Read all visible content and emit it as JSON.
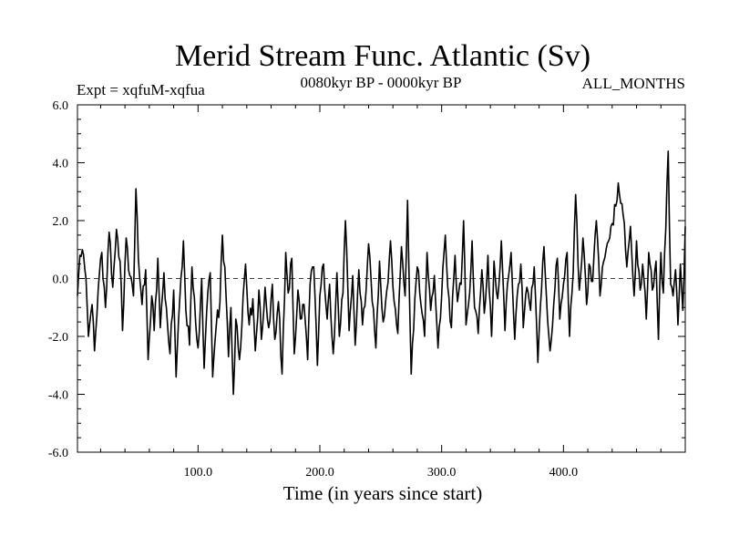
{
  "chart_data": {
    "type": "line",
    "title": "Merid Stream Func. Atlantic (Sv)",
    "left_label": "Expt = xqfuM-xqfua",
    "center_label": "0080kyr BP - 0000kyr BP",
    "right_label": "ALL_MONTHS",
    "xlabel": "Time (in years since start)",
    "ylabel": "",
    "xlim": [
      1,
      500
    ],
    "ylim": [
      -6.0,
      6.0
    ],
    "xticks": [
      100.0,
      200.0,
      300.0,
      400.0
    ],
    "xtick_labels": [
      "100.0",
      "200.0",
      "300.0",
      "400.0"
    ],
    "yticks": [
      -6.0,
      -4.0,
      -2.0,
      0.0,
      2.0,
      4.0,
      6.0
    ],
    "ytick_labels": [
      "-6.0",
      "-4.0",
      "-2.0",
      "0.0",
      "2.0",
      "4.0",
      "6.0"
    ],
    "reference_line": 0.0,
    "series": [
      {
        "name": "xqfuM-xqfua",
        "color": "#000000",
        "anchors": [
          [
            1,
            -0.6
          ],
          [
            3,
            0.8
          ],
          [
            5,
            1.0
          ],
          [
            8,
            0.0
          ],
          [
            10,
            -2.0
          ],
          [
            13,
            -0.9
          ],
          [
            15,
            -2.5
          ],
          [
            18,
            -0.4
          ],
          [
            21,
            0.9
          ],
          [
            24,
            -1.0
          ],
          [
            27,
            1.6
          ],
          [
            30,
            -0.3
          ],
          [
            33,
            1.7
          ],
          [
            36,
            0.6
          ],
          [
            38,
            -1.8
          ],
          [
            41,
            1.4
          ],
          [
            44,
            0.1
          ],
          [
            47,
            -0.6
          ],
          [
            49,
            3.1
          ],
          [
            51,
            0.7
          ],
          [
            54,
            -0.9
          ],
          [
            57,
            0.3
          ],
          [
            59,
            -2.8
          ],
          [
            62,
            -0.6
          ],
          [
            64,
            -1.8
          ],
          [
            67,
            0.7
          ],
          [
            69,
            -1.7
          ],
          [
            72,
            0.2
          ],
          [
            74,
            -1.0
          ],
          [
            77,
            -2.6
          ],
          [
            80,
            -0.4
          ],
          [
            82,
            -3.4
          ],
          [
            85,
            -0.7
          ],
          [
            88,
            1.3
          ],
          [
            90,
            -1.1
          ],
          [
            93,
            -2.3
          ],
          [
            95,
            0.4
          ],
          [
            98,
            -1.5
          ],
          [
            100,
            -2.4
          ],
          [
            103,
            0.0
          ],
          [
            105,
            -3.1
          ],
          [
            108,
            -0.5
          ],
          [
            110,
            0.2
          ],
          [
            112,
            -3.4
          ],
          [
            115,
            -1.6
          ],
          [
            118,
            -0.8
          ],
          [
            120,
            1.5
          ],
          [
            123,
            -0.6
          ],
          [
            125,
            -2.7
          ],
          [
            127,
            -1.0
          ],
          [
            129,
            -4.0
          ],
          [
            131,
            -1.4
          ],
          [
            134,
            -2.8
          ],
          [
            137,
            -0.6
          ],
          [
            139,
            0.5
          ],
          [
            142,
            -1.6
          ],
          [
            145,
            -0.7
          ],
          [
            147,
            -2.5
          ],
          [
            150,
            -0.4
          ],
          [
            152,
            -2.1
          ],
          [
            155,
            -0.3
          ],
          [
            158,
            -1.7
          ],
          [
            161,
            -0.2
          ],
          [
            163,
            -2.1
          ],
          [
            166,
            -0.8
          ],
          [
            169,
            -3.3
          ],
          [
            172,
            0.9
          ],
          [
            174,
            -0.5
          ],
          [
            177,
            0.7
          ],
          [
            179,
            -2.6
          ],
          [
            182,
            -0.4
          ],
          [
            184,
            -1.4
          ],
          [
            187,
            -0.9
          ],
          [
            190,
            -2.8
          ],
          [
            192,
            -0.2
          ],
          [
            195,
            0.4
          ],
          [
            198,
            -3.0
          ],
          [
            200,
            -0.6
          ],
          [
            203,
            0.5
          ],
          [
            206,
            -1.4
          ],
          [
            208,
            -0.2
          ],
          [
            211,
            -2.6
          ],
          [
            214,
            0.2
          ],
          [
            216,
            -2.0
          ],
          [
            219,
            -0.5
          ],
          [
            221,
            2.0
          ],
          [
            224,
            -1.8
          ],
          [
            227,
            0.1
          ],
          [
            229,
            -2.3
          ],
          [
            232,
            0.3
          ],
          [
            235,
            -1.6
          ],
          [
            238,
            -0.4
          ],
          [
            240,
            1.2
          ],
          [
            243,
            -0.8
          ],
          [
            246,
            -2.4
          ],
          [
            249,
            0.6
          ],
          [
            252,
            -1.5
          ],
          [
            255,
            -0.4
          ],
          [
            258,
            1.3
          ],
          [
            261,
            -0.8
          ],
          [
            264,
            -1.9
          ],
          [
            267,
            1.1
          ],
          [
            270,
            -0.6
          ],
          [
            272,
            2.7
          ],
          [
            275,
            -3.3
          ],
          [
            278,
            -0.7
          ],
          [
            280,
            0.4
          ],
          [
            283,
            -0.9
          ],
          [
            286,
            -2.0
          ],
          [
            288,
            0.9
          ],
          [
            291,
            -1.1
          ],
          [
            294,
            0.1
          ],
          [
            297,
            -2.4
          ],
          [
            300,
            -0.6
          ],
          [
            303,
            1.5
          ],
          [
            305,
            -0.3
          ],
          [
            308,
            -1.7
          ],
          [
            311,
            0.8
          ],
          [
            313,
            -0.8
          ],
          [
            316,
            -0.2
          ],
          [
            318,
            2.0
          ],
          [
            320,
            -1.6
          ],
          [
            323,
            -0.5
          ],
          [
            325,
            1.3
          ],
          [
            327,
            -1.0
          ],
          [
            330,
            -1.9
          ],
          [
            333,
            0.3
          ],
          [
            335,
            -1.2
          ],
          [
            338,
            0.8
          ],
          [
            341,
            -2.0
          ],
          [
            343,
            0.6
          ],
          [
            346,
            -0.7
          ],
          [
            349,
            1.3
          ],
          [
            352,
            -1.8
          ],
          [
            354,
            -0.2
          ],
          [
            357,
            0.9
          ],
          [
            360,
            -2.1
          ],
          [
            362,
            -0.6
          ],
          [
            365,
            0.5
          ],
          [
            367,
            -1.7
          ],
          [
            370,
            -0.3
          ],
          [
            373,
            -1.1
          ],
          [
            376,
            0.4
          ],
          [
            379,
            -2.9
          ],
          [
            381,
            -1.0
          ],
          [
            384,
            1.1
          ],
          [
            386,
            -0.6
          ],
          [
            389,
            -2.5
          ],
          [
            392,
            -0.9
          ],
          [
            395,
            0.7
          ],
          [
            397,
            -1.4
          ],
          [
            400,
            -0.2
          ],
          [
            403,
            0.9
          ],
          [
            405,
            -2.0
          ],
          [
            408,
            0.2
          ],
          [
            410,
            2.9
          ],
          [
            413,
            -0.4
          ],
          [
            416,
            1.4
          ],
          [
            419,
            -0.9
          ],
          [
            421,
            0.5
          ],
          [
            424,
            -0.1
          ],
          [
            427,
            2.0
          ],
          [
            430,
            -0.6
          ],
          [
            432,
            0.4
          ],
          [
            435,
            1.0
          ],
          [
            438,
            1.4
          ],
          [
            440,
            1.9
          ],
          [
            443,
            2.5
          ],
          [
            445,
            3.3
          ],
          [
            447,
            2.6
          ],
          [
            450,
            1.9
          ],
          [
            452,
            0.4
          ],
          [
            455,
            1.8
          ],
          [
            458,
            -0.6
          ],
          [
            460,
            1.3
          ],
          [
            463,
            -0.4
          ],
          [
            465,
            0.5
          ],
          [
            468,
            -1.4
          ],
          [
            470,
            0.9
          ],
          [
            473,
            -0.4
          ],
          [
            476,
            0.6
          ],
          [
            478,
            -2.1
          ],
          [
            480,
            0.9
          ],
          [
            482,
            -0.5
          ],
          [
            484,
            1.7
          ],
          [
            486,
            4.4
          ],
          [
            488,
            -0.2
          ],
          [
            490,
            -0.6
          ],
          [
            492,
            0.3
          ],
          [
            494,
            -1.6
          ],
          [
            496,
            0.5
          ],
          [
            498,
            -1.1
          ],
          [
            500,
            1.8
          ]
        ]
      }
    ]
  }
}
